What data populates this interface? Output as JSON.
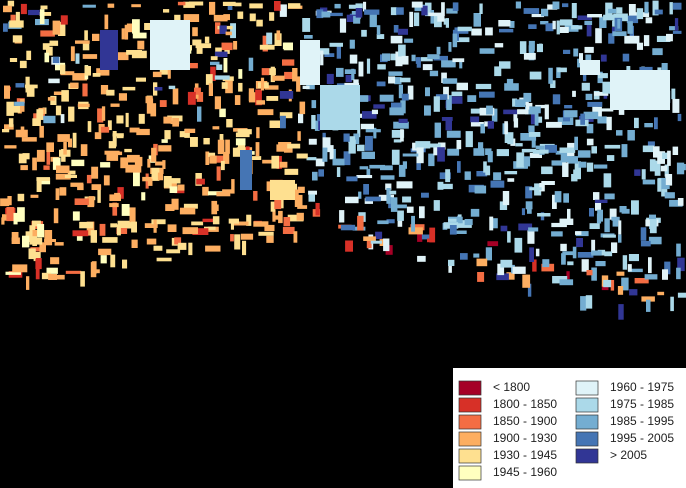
{
  "legend": {
    "items": [
      {
        "label": "< 1800",
        "color": "#a50026"
      },
      {
        "label": "1800 - 1850",
        "color": "#d73027"
      },
      {
        "label": "1850 - 1900",
        "color": "#f46d43"
      },
      {
        "label": "1900 - 1930",
        "color": "#fdae61"
      },
      {
        "label": "1930 - 1945",
        "color": "#fee090"
      },
      {
        "label": "1945 - 1960",
        "color": "#ffffbf"
      },
      {
        "label": "1960 - 1975",
        "color": "#e0f3f8"
      },
      {
        "label": "1975 - 1985",
        "color": "#abd9e9"
      },
      {
        "label": "1985 - 1995",
        "color": "#74add1"
      },
      {
        "label": "1995 - 2005",
        "color": "#4575b4"
      },
      {
        "label": "> 2005",
        "color": "#313695"
      }
    ]
  }
}
